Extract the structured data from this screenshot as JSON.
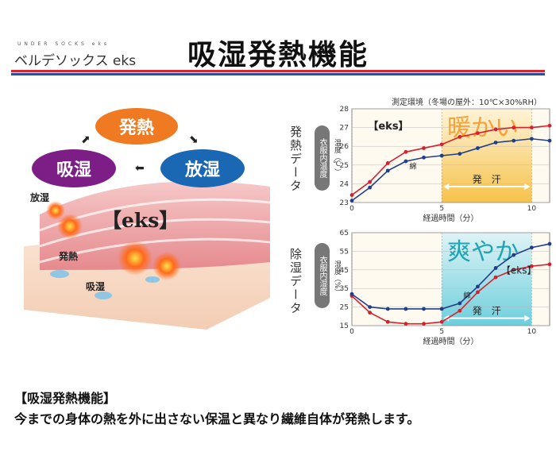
{
  "header": {
    "brand_small": "UNDER SOCKS eks",
    "brand": "ベルデソックス eks",
    "title": "吸湿発熱機能"
  },
  "illustration": {
    "bubble_heat": "発熱",
    "bubble_absorb": "吸湿",
    "bubble_release": "放湿",
    "label_release": "放湿",
    "label_heat": "発熱",
    "label_absorb": "吸湿",
    "brand_mark": "【eks】"
  },
  "conditions": "測定環境（冬場の屋外：10℃×30%RH）",
  "panels": {
    "top_label": "発熱データ",
    "top_pill": "衣服内温度",
    "top_unit": "温度（℃）",
    "bottom_label": "除湿データ",
    "bottom_pill": "衣服内湿度",
    "bottom_unit": "湿度（%）"
  },
  "chart_data": [
    {
      "type": "line",
      "xlabel": "経過時間（分）",
      "ylabel": "温度（℃）",
      "xlim": [
        0,
        11
      ],
      "ylim": [
        23,
        28
      ],
      "yticks": [
        23,
        24,
        25,
        26,
        27,
        28
      ],
      "xticks": [
        0,
        5,
        10
      ],
      "x": [
        0,
        1,
        2,
        3,
        4,
        5,
        6,
        7,
        8,
        9,
        10,
        11
      ],
      "series": [
        {
          "name": "【eks】",
          "color": "#d7202e",
          "values": [
            23.4,
            24.1,
            25.1,
            25.7,
            25.9,
            26.1,
            26.5,
            26.7,
            26.9,
            27.0,
            27.0,
            27.1
          ]
        },
        {
          "name": "綿",
          "color": "#1f3f8c",
          "values": [
            23.1,
            23.8,
            24.7,
            25.2,
            25.4,
            25.5,
            25.6,
            25.9,
            26.2,
            26.3,
            26.4,
            26.3
          ]
        }
      ],
      "overlay_text": "暖かい",
      "sweat_label": "発　汗",
      "series_labels": {
        "eks": "【eks】",
        "cotton": "綿"
      }
    },
    {
      "type": "line",
      "xlabel": "経過時間（分）",
      "ylabel": "湿度（%）",
      "xlim": [
        0,
        11
      ],
      "ylim": [
        15,
        65
      ],
      "yticks": [
        15,
        25,
        35,
        45,
        55,
        65
      ],
      "xticks": [
        0,
        5,
        10
      ],
      "x": [
        0,
        1,
        2,
        3,
        4,
        5,
        6,
        7,
        8,
        9,
        10,
        11
      ],
      "series": [
        {
          "name": "【eks】",
          "color": "#d7202e",
          "values": [
            31,
            22,
            17,
            16,
            16,
            17,
            23,
            33,
            41,
            45,
            47,
            48
          ]
        },
        {
          "name": "綿",
          "color": "#1f3f8c",
          "values": [
            32,
            25,
            24,
            24,
            24,
            24,
            27,
            36,
            46,
            53,
            57,
            59
          ]
        }
      ],
      "overlay_text": "爽やか",
      "sweat_label": "発　汗",
      "series_labels": {
        "eks": "【eks】",
        "cotton": "綿"
      }
    }
  ],
  "footer": {
    "heading": "【吸湿発熱機能】",
    "text": "今までの身体の熱を外に出さない保温と異なり繊維自体が発熱します。"
  }
}
